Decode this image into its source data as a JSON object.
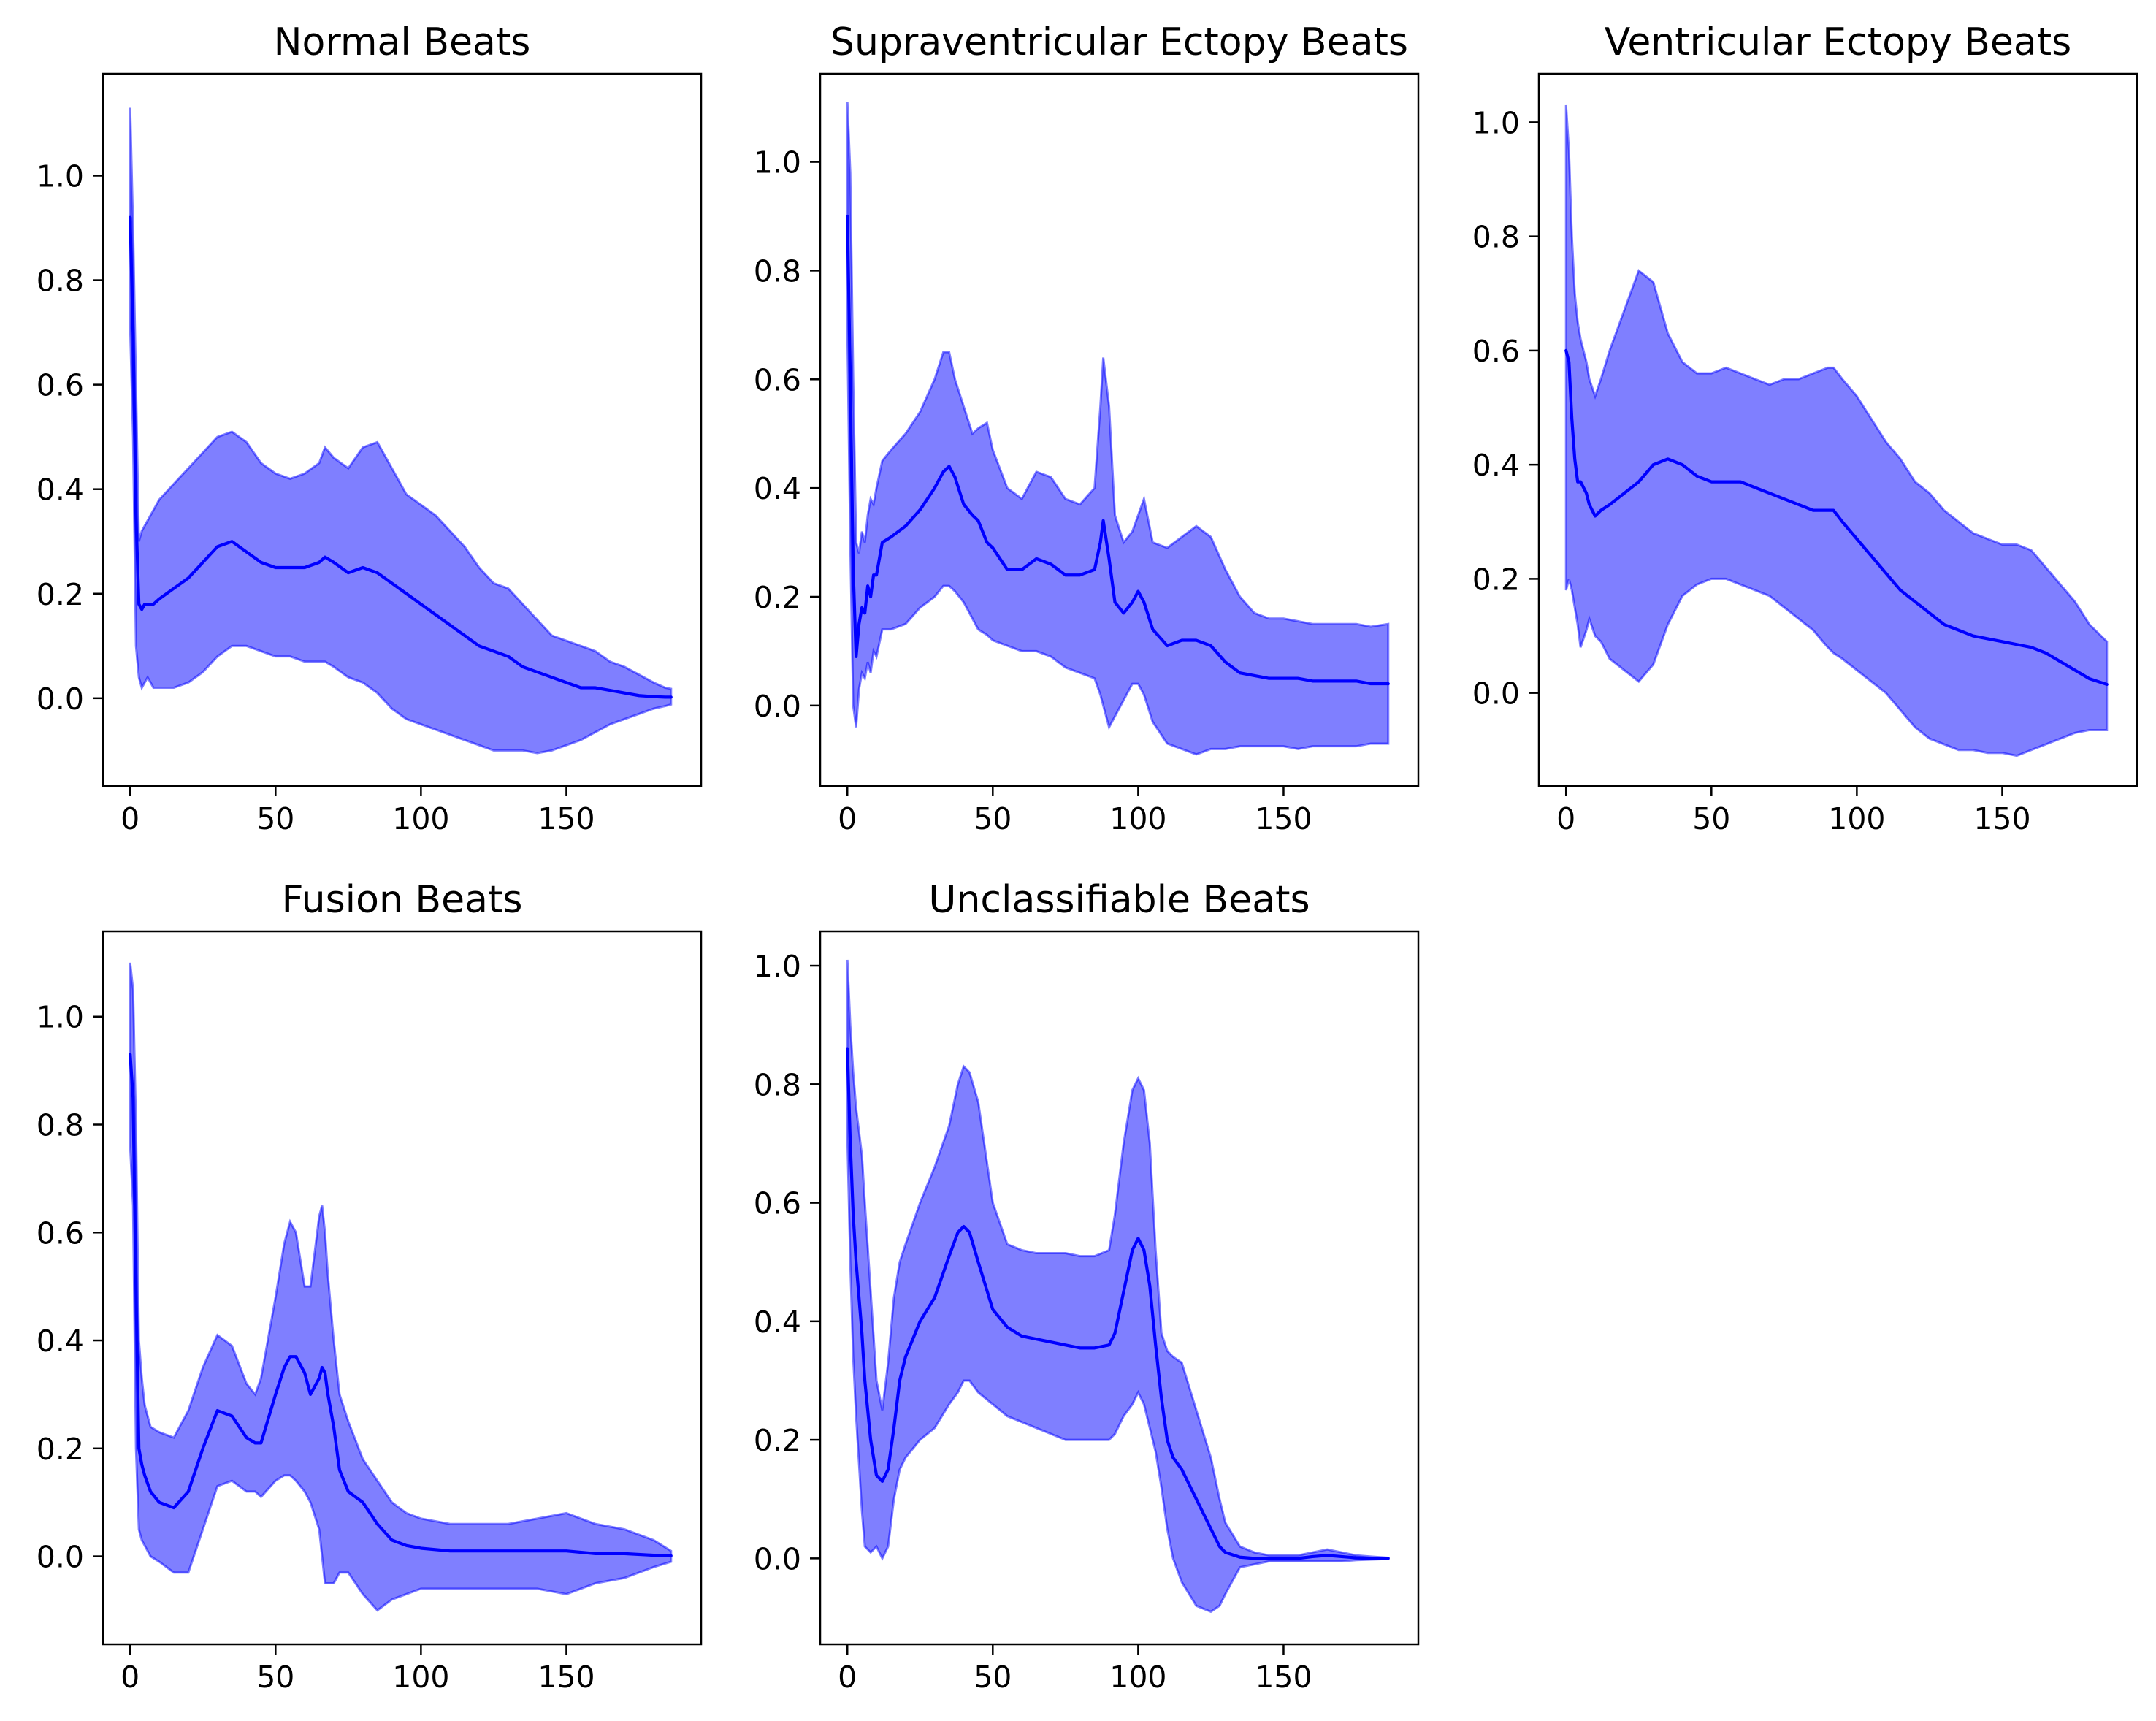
{
  "chart_data": [
    {
      "type": "area",
      "title": "Normal Beats",
      "xlabel": "",
      "ylabel": "",
      "xlim": [
        -9.35,
        196.35
      ],
      "ylim": [
        -0.168,
        1.195
      ],
      "xticks": [
        0,
        50,
        100,
        150
      ],
      "xtick_labels": [
        "0",
        "50",
        "100",
        "150"
      ],
      "yticks": [
        0.0,
        0.2,
        0.4,
        0.6,
        0.8,
        1.0
      ],
      "ytick_labels": [
        "0.0",
        "0.2",
        "0.4",
        "0.6",
        "0.8",
        "1.0"
      ],
      "grid": false,
      "legend": "none",
      "mean_color": "#0000ff",
      "band_color": "#0000ff",
      "band_opacity": 0.5,
      "x": [
        0,
        1,
        2,
        3,
        4,
        5,
        6,
        8,
        10,
        15,
        20,
        25,
        30,
        35,
        40,
        45,
        50,
        55,
        60,
        65,
        67,
        70,
        75,
        80,
        85,
        90,
        95,
        100,
        105,
        110,
        115,
        120,
        125,
        130,
        135,
        140,
        145,
        150,
        155,
        160,
        165,
        170,
        175,
        180,
        184,
        186
      ],
      "mean": [
        0.92,
        0.7,
        0.35,
        0.18,
        0.17,
        0.18,
        0.18,
        0.18,
        0.19,
        0.21,
        0.23,
        0.26,
        0.29,
        0.3,
        0.28,
        0.26,
        0.25,
        0.25,
        0.25,
        0.26,
        0.27,
        0.26,
        0.24,
        0.25,
        0.24,
        0.22,
        0.2,
        0.18,
        0.16,
        0.14,
        0.12,
        0.1,
        0.09,
        0.08,
        0.06,
        0.05,
        0.04,
        0.03,
        0.02,
        0.02,
        0.015,
        0.01,
        0.005,
        0.003,
        0.002,
        0.002
      ],
      "upper": [
        1.13,
        0.9,
        0.6,
        0.3,
        0.32,
        0.33,
        0.34,
        0.36,
        0.38,
        0.41,
        0.44,
        0.47,
        0.5,
        0.51,
        0.49,
        0.45,
        0.43,
        0.42,
        0.43,
        0.45,
        0.48,
        0.46,
        0.44,
        0.48,
        0.49,
        0.44,
        0.39,
        0.37,
        0.35,
        0.32,
        0.29,
        0.25,
        0.22,
        0.21,
        0.18,
        0.15,
        0.12,
        0.11,
        0.1,
        0.09,
        0.07,
        0.06,
        0.045,
        0.03,
        0.02,
        0.018
      ],
      "lower": [
        0.71,
        0.5,
        0.1,
        0.04,
        0.02,
        0.03,
        0.04,
        0.02,
        0.02,
        0.02,
        0.03,
        0.05,
        0.08,
        0.1,
        0.1,
        0.09,
        0.08,
        0.08,
        0.07,
        0.07,
        0.07,
        0.06,
        0.04,
        0.03,
        0.01,
        -0.02,
        -0.04,
        -0.05,
        -0.06,
        -0.07,
        -0.08,
        -0.09,
        -0.1,
        -0.1,
        -0.1,
        -0.105,
        -0.1,
        -0.09,
        -0.08,
        -0.065,
        -0.05,
        -0.04,
        -0.03,
        -0.02,
        -0.015,
        -0.012
      ]
    },
    {
      "type": "area",
      "title": "Supraventricular Ectopy Beats",
      "xlabel": "",
      "ylabel": "",
      "xlim": [
        -9.35,
        196.35
      ],
      "ylim": [
        -0.148,
        1.162
      ],
      "xticks": [
        0,
        50,
        100,
        150
      ],
      "xtick_labels": [
        "0",
        "50",
        "100",
        "150"
      ],
      "yticks": [
        0.0,
        0.2,
        0.4,
        0.6,
        0.8,
        1.0
      ],
      "ytick_labels": [
        "0.0",
        "0.2",
        "0.4",
        "0.6",
        "0.8",
        "1.0"
      ],
      "grid": false,
      "legend": "none",
      "mean_color": "#0000ff",
      "band_color": "#0000ff",
      "band_opacity": 0.5,
      "x": [
        0,
        1,
        2,
        3,
        4,
        5,
        6,
        7,
        8,
        9,
        10,
        12,
        15,
        20,
        25,
        30,
        33,
        35,
        37,
        40,
        43,
        45,
        48,
        50,
        55,
        60,
        65,
        70,
        75,
        80,
        85,
        87,
        88,
        90,
        92,
        95,
        98,
        100,
        102,
        105,
        110,
        115,
        120,
        125,
        130,
        135,
        140,
        145,
        150,
        155,
        160,
        165,
        170,
        175,
        180,
        186
      ],
      "mean": [
        0.9,
        0.6,
        0.25,
        0.09,
        0.15,
        0.18,
        0.17,
        0.22,
        0.2,
        0.24,
        0.24,
        0.3,
        0.31,
        0.33,
        0.36,
        0.4,
        0.43,
        0.44,
        0.42,
        0.37,
        0.35,
        0.34,
        0.3,
        0.29,
        0.25,
        0.25,
        0.27,
        0.26,
        0.24,
        0.24,
        0.25,
        0.3,
        0.34,
        0.27,
        0.19,
        0.17,
        0.19,
        0.21,
        0.19,
        0.14,
        0.11,
        0.12,
        0.12,
        0.11,
        0.08,
        0.06,
        0.055,
        0.05,
        0.05,
        0.05,
        0.045,
        0.045,
        0.045,
        0.045,
        0.04,
        0.04
      ],
      "upper": [
        1.11,
        0.98,
        0.6,
        0.3,
        0.28,
        0.32,
        0.3,
        0.35,
        0.38,
        0.37,
        0.4,
        0.45,
        0.47,
        0.5,
        0.54,
        0.6,
        0.65,
        0.65,
        0.6,
        0.55,
        0.5,
        0.51,
        0.52,
        0.47,
        0.4,
        0.38,
        0.43,
        0.42,
        0.38,
        0.37,
        0.4,
        0.55,
        0.64,
        0.55,
        0.35,
        0.3,
        0.32,
        0.35,
        0.38,
        0.3,
        0.29,
        0.31,
        0.33,
        0.31,
        0.25,
        0.2,
        0.17,
        0.16,
        0.16,
        0.155,
        0.15,
        0.15,
        0.15,
        0.15,
        0.145,
        0.15
      ],
      "lower": [
        0.69,
        0.3,
        0.0,
        -0.04,
        0.03,
        0.06,
        0.05,
        0.08,
        0.06,
        0.1,
        0.09,
        0.14,
        0.14,
        0.15,
        0.18,
        0.2,
        0.22,
        0.22,
        0.21,
        0.19,
        0.16,
        0.14,
        0.13,
        0.12,
        0.11,
        0.1,
        0.1,
        0.09,
        0.07,
        0.06,
        0.05,
        0.02,
        0.0,
        -0.04,
        -0.02,
        0.01,
        0.04,
        0.04,
        0.02,
        -0.03,
        -0.07,
        -0.08,
        -0.09,
        -0.08,
        -0.08,
        -0.075,
        -0.075,
        -0.075,
        -0.075,
        -0.08,
        -0.075,
        -0.075,
        -0.075,
        -0.075,
        -0.07,
        -0.07
      ]
    },
    {
      "type": "area",
      "title": "Ventricular Ectopy Beats",
      "xlabel": "",
      "ylabel": "",
      "xlim": [
        -9.35,
        196.35
      ],
      "ylim": [
        -0.163,
        1.085
      ],
      "xticks": [
        0,
        50,
        100,
        150
      ],
      "xtick_labels": [
        "0",
        "50",
        "100",
        "150"
      ],
      "yticks": [
        0.0,
        0.2,
        0.4,
        0.6,
        0.8,
        1.0
      ],
      "ytick_labels": [
        "0.0",
        "0.2",
        "0.4",
        "0.6",
        "0.8",
        "1.0"
      ],
      "grid": false,
      "legend": "none",
      "mean_color": "#0000ff",
      "band_color": "#0000ff",
      "band_opacity": 0.5,
      "x": [
        0,
        1,
        2,
        3,
        4,
        5,
        7,
        8,
        10,
        12,
        15,
        20,
        25,
        30,
        35,
        40,
        45,
        50,
        55,
        60,
        65,
        70,
        75,
        80,
        85,
        90,
        92,
        95,
        100,
        105,
        110,
        115,
        120,
        125,
        130,
        135,
        140,
        145,
        150,
        155,
        160,
        165,
        170,
        175,
        180,
        186
      ],
      "mean": [
        0.6,
        0.58,
        0.48,
        0.41,
        0.37,
        0.37,
        0.35,
        0.33,
        0.31,
        0.32,
        0.33,
        0.35,
        0.37,
        0.4,
        0.41,
        0.4,
        0.38,
        0.37,
        0.37,
        0.37,
        0.36,
        0.35,
        0.34,
        0.33,
        0.32,
        0.32,
        0.32,
        0.3,
        0.27,
        0.24,
        0.21,
        0.18,
        0.16,
        0.14,
        0.12,
        0.11,
        0.1,
        0.095,
        0.09,
        0.085,
        0.08,
        0.07,
        0.055,
        0.04,
        0.025,
        0.015
      ],
      "upper": [
        1.03,
        0.95,
        0.8,
        0.7,
        0.65,
        0.62,
        0.58,
        0.55,
        0.52,
        0.55,
        0.6,
        0.67,
        0.74,
        0.72,
        0.63,
        0.58,
        0.56,
        0.56,
        0.57,
        0.56,
        0.55,
        0.54,
        0.55,
        0.55,
        0.56,
        0.57,
        0.57,
        0.55,
        0.52,
        0.48,
        0.44,
        0.41,
        0.37,
        0.35,
        0.32,
        0.3,
        0.28,
        0.27,
        0.26,
        0.26,
        0.25,
        0.22,
        0.19,
        0.16,
        0.12,
        0.09
      ],
      "lower": [
        0.18,
        0.2,
        0.18,
        0.15,
        0.12,
        0.08,
        0.11,
        0.13,
        0.1,
        0.09,
        0.06,
        0.04,
        0.02,
        0.05,
        0.12,
        0.17,
        0.19,
        0.2,
        0.2,
        0.19,
        0.18,
        0.17,
        0.15,
        0.13,
        0.11,
        0.08,
        0.07,
        0.06,
        0.04,
        0.02,
        0.0,
        -0.03,
        -0.06,
        -0.08,
        -0.09,
        -0.1,
        -0.1,
        -0.105,
        -0.105,
        -0.11,
        -0.1,
        -0.09,
        -0.08,
        -0.07,
        -0.065,
        -0.065
      ]
    },
    {
      "type": "area",
      "title": "Fusion Beats",
      "xlabel": "",
      "ylabel": "",
      "xlim": [
        -9.35,
        196.35
      ],
      "ylim": [
        -0.163,
        1.158
      ],
      "xticks": [
        0,
        50,
        100,
        150
      ],
      "xtick_labels": [
        "0",
        "50",
        "100",
        "150"
      ],
      "yticks": [
        0.0,
        0.2,
        0.4,
        0.6,
        0.8,
        1.0
      ],
      "ytick_labels": [
        "0.0",
        "0.2",
        "0.4",
        "0.6",
        "0.8",
        "1.0"
      ],
      "grid": false,
      "legend": "none",
      "mean_color": "#0000ff",
      "band_color": "#0000ff",
      "band_opacity": 0.5,
      "x": [
        0,
        1,
        2,
        3,
        4,
        5,
        7,
        10,
        15,
        20,
        25,
        30,
        35,
        40,
        43,
        45,
        50,
        53,
        55,
        57,
        60,
        62,
        65,
        66,
        67,
        68,
        70,
        72,
        75,
        80,
        85,
        90,
        95,
        100,
        110,
        120,
        130,
        140,
        150,
        160,
        170,
        180,
        186
      ],
      "mean": [
        0.93,
        0.85,
        0.5,
        0.2,
        0.17,
        0.15,
        0.12,
        0.1,
        0.09,
        0.12,
        0.2,
        0.27,
        0.26,
        0.22,
        0.21,
        0.21,
        0.3,
        0.35,
        0.37,
        0.37,
        0.34,
        0.3,
        0.33,
        0.35,
        0.34,
        0.3,
        0.24,
        0.16,
        0.12,
        0.1,
        0.06,
        0.03,
        0.02,
        0.015,
        0.01,
        0.01,
        0.01,
        0.01,
        0.01,
        0.005,
        0.005,
        0.002,
        0.001
      ],
      "upper": [
        1.1,
        1.05,
        0.8,
        0.4,
        0.33,
        0.28,
        0.24,
        0.23,
        0.22,
        0.27,
        0.35,
        0.41,
        0.39,
        0.32,
        0.3,
        0.33,
        0.48,
        0.58,
        0.62,
        0.6,
        0.5,
        0.5,
        0.63,
        0.65,
        0.6,
        0.52,
        0.4,
        0.3,
        0.25,
        0.18,
        0.14,
        0.1,
        0.08,
        0.07,
        0.06,
        0.06,
        0.06,
        0.07,
        0.08,
        0.06,
        0.05,
        0.03,
        0.01
      ],
      "lower": [
        0.76,
        0.65,
        0.2,
        0.05,
        0.03,
        0.02,
        0.0,
        -0.01,
        -0.03,
        -0.03,
        0.05,
        0.13,
        0.14,
        0.12,
        0.12,
        0.11,
        0.14,
        0.15,
        0.15,
        0.14,
        0.12,
        0.1,
        0.05,
        0.0,
        -0.05,
        -0.05,
        -0.05,
        -0.03,
        -0.03,
        -0.07,
        -0.1,
        -0.08,
        -0.07,
        -0.06,
        -0.06,
        -0.06,
        -0.06,
        -0.06,
        -0.07,
        -0.05,
        -0.04,
        -0.02,
        -0.01
      ]
    },
    {
      "type": "area",
      "title": "Unclassifiable Beats",
      "xlabel": "",
      "ylabel": "",
      "xlim": [
        -9.35,
        196.35
      ],
      "ylim": [
        -0.145,
        1.058
      ],
      "xticks": [
        0,
        50,
        100,
        150
      ],
      "xtick_labels": [
        "0",
        "50",
        "100",
        "150"
      ],
      "yticks": [
        0.0,
        0.2,
        0.4,
        0.6,
        0.8,
        1.0
      ],
      "ytick_labels": [
        "0.0",
        "0.2",
        "0.4",
        "0.6",
        "0.8",
        "1.0"
      ],
      "grid": false,
      "legend": "none",
      "mean_color": "#0000ff",
      "band_color": "#0000ff",
      "band_opacity": 0.5,
      "x": [
        0,
        1,
        2,
        3,
        4,
        5,
        6,
        8,
        10,
        12,
        14,
        16,
        18,
        20,
        25,
        30,
        35,
        38,
        40,
        42,
        45,
        50,
        55,
        60,
        65,
        70,
        75,
        80,
        85,
        90,
        92,
        95,
        98,
        100,
        102,
        104,
        106,
        108,
        110,
        112,
        115,
        120,
        125,
        128,
        130,
        135,
        140,
        145,
        150,
        155,
        160,
        165,
        170,
        175,
        180,
        186
      ],
      "mean": [
        0.86,
        0.7,
        0.58,
        0.5,
        0.44,
        0.38,
        0.3,
        0.2,
        0.14,
        0.13,
        0.15,
        0.22,
        0.3,
        0.34,
        0.4,
        0.44,
        0.51,
        0.55,
        0.56,
        0.55,
        0.5,
        0.42,
        0.39,
        0.375,
        0.37,
        0.365,
        0.36,
        0.355,
        0.355,
        0.36,
        0.38,
        0.45,
        0.52,
        0.54,
        0.52,
        0.46,
        0.36,
        0.27,
        0.2,
        0.17,
        0.15,
        0.1,
        0.05,
        0.02,
        0.01,
        0.002,
        0.0,
        0.0,
        0.0,
        0.0,
        0.003,
        0.005,
        0.003,
        0.001,
        0.0,
        0.0
      ],
      "upper": [
        1.01,
        0.9,
        0.82,
        0.76,
        0.72,
        0.68,
        0.6,
        0.45,
        0.3,
        0.25,
        0.33,
        0.44,
        0.5,
        0.53,
        0.6,
        0.66,
        0.73,
        0.8,
        0.83,
        0.82,
        0.77,
        0.6,
        0.53,
        0.52,
        0.515,
        0.515,
        0.515,
        0.51,
        0.51,
        0.52,
        0.58,
        0.7,
        0.79,
        0.81,
        0.79,
        0.7,
        0.52,
        0.38,
        0.35,
        0.34,
        0.33,
        0.25,
        0.17,
        0.1,
        0.06,
        0.02,
        0.01,
        0.005,
        0.005,
        0.005,
        0.01,
        0.015,
        0.01,
        0.005,
        0.003,
        0.001
      ],
      "lower": [
        0.71,
        0.5,
        0.34,
        0.24,
        0.16,
        0.08,
        0.02,
        0.01,
        0.02,
        0.0,
        0.02,
        0.1,
        0.15,
        0.17,
        0.2,
        0.22,
        0.26,
        0.28,
        0.3,
        0.3,
        0.28,
        0.26,
        0.24,
        0.23,
        0.22,
        0.21,
        0.2,
        0.2,
        0.2,
        0.2,
        0.21,
        0.24,
        0.26,
        0.28,
        0.26,
        0.22,
        0.18,
        0.12,
        0.05,
        0.0,
        -0.04,
        -0.08,
        -0.09,
        -0.08,
        -0.06,
        -0.015,
        -0.01,
        -0.005,
        -0.005,
        -0.005,
        -0.005,
        -0.005,
        -0.005,
        -0.003,
        -0.002,
        -0.001
      ]
    }
  ]
}
